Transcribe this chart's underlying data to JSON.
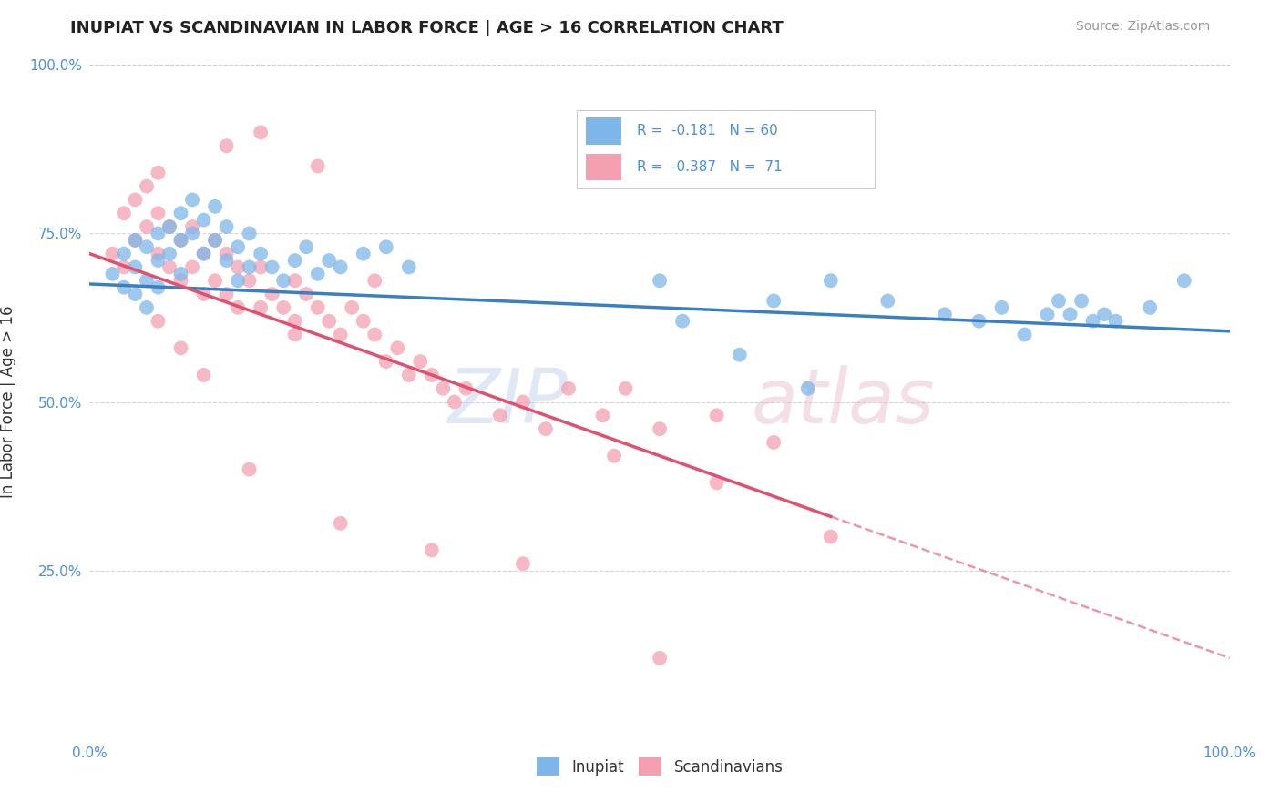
{
  "title": "INUPIAT VS SCANDINAVIAN IN LABOR FORCE | AGE > 16 CORRELATION CHART",
  "source_text": "Source: ZipAtlas.com",
  "ylabel": "In Labor Force | Age > 16",
  "xlim": [
    0.0,
    1.0
  ],
  "ylim": [
    0.0,
    1.0
  ],
  "background_color": "#ffffff",
  "grid_color": "#cccccc",
  "inupiat_color": "#7eb6e8",
  "scandinavian_color": "#f4a0b0",
  "inupiat_line_color": "#3a7fc1",
  "scandinavian_line_color": "#e05070",
  "inupiat_x": [
    0.02,
    0.03,
    0.03,
    0.04,
    0.04,
    0.04,
    0.05,
    0.05,
    0.05,
    0.06,
    0.06,
    0.06,
    0.07,
    0.07,
    0.08,
    0.08,
    0.08,
    0.09,
    0.09,
    0.1,
    0.1,
    0.11,
    0.11,
    0.12,
    0.12,
    0.13,
    0.13,
    0.14,
    0.14,
    0.15,
    0.16,
    0.17,
    0.18,
    0.19,
    0.2,
    0.21,
    0.22,
    0.24,
    0.26,
    0.28,
    0.5,
    0.52,
    0.57,
    0.6,
    0.63,
    0.65,
    0.7,
    0.75,
    0.78,
    0.8,
    0.82,
    0.84,
    0.85,
    0.86,
    0.87,
    0.88,
    0.89,
    0.9,
    0.93,
    0.96
  ],
  "inupiat_y": [
    0.69,
    0.72,
    0.67,
    0.74,
    0.7,
    0.66,
    0.73,
    0.68,
    0.64,
    0.75,
    0.71,
    0.67,
    0.76,
    0.72,
    0.78,
    0.74,
    0.69,
    0.8,
    0.75,
    0.77,
    0.72,
    0.79,
    0.74,
    0.76,
    0.71,
    0.73,
    0.68,
    0.75,
    0.7,
    0.72,
    0.7,
    0.68,
    0.71,
    0.73,
    0.69,
    0.71,
    0.7,
    0.72,
    0.73,
    0.7,
    0.68,
    0.62,
    0.57,
    0.65,
    0.52,
    0.68,
    0.65,
    0.63,
    0.62,
    0.64,
    0.6,
    0.63,
    0.65,
    0.63,
    0.65,
    0.62,
    0.63,
    0.62,
    0.64,
    0.68
  ],
  "scandinavian_x": [
    0.02,
    0.03,
    0.03,
    0.04,
    0.04,
    0.05,
    0.05,
    0.06,
    0.06,
    0.06,
    0.07,
    0.07,
    0.08,
    0.08,
    0.09,
    0.09,
    0.1,
    0.1,
    0.11,
    0.11,
    0.12,
    0.12,
    0.13,
    0.13,
    0.14,
    0.15,
    0.15,
    0.16,
    0.17,
    0.18,
    0.18,
    0.19,
    0.2,
    0.21,
    0.22,
    0.23,
    0.24,
    0.25,
    0.26,
    0.27,
    0.28,
    0.29,
    0.3,
    0.31,
    0.32,
    0.33,
    0.36,
    0.38,
    0.4,
    0.42,
    0.45,
    0.47,
    0.5,
    0.55,
    0.6,
    0.15,
    0.2,
    0.12,
    0.25,
    0.18,
    0.08,
    0.1,
    0.06,
    0.14,
    0.22,
    0.3,
    0.38,
    0.46,
    0.55,
    0.65,
    0.5
  ],
  "scandinavian_y": [
    0.72,
    0.78,
    0.7,
    0.8,
    0.74,
    0.82,
    0.76,
    0.84,
    0.78,
    0.72,
    0.76,
    0.7,
    0.74,
    0.68,
    0.76,
    0.7,
    0.72,
    0.66,
    0.74,
    0.68,
    0.72,
    0.66,
    0.7,
    0.64,
    0.68,
    0.7,
    0.64,
    0.66,
    0.64,
    0.68,
    0.62,
    0.66,
    0.64,
    0.62,
    0.6,
    0.64,
    0.62,
    0.6,
    0.56,
    0.58,
    0.54,
    0.56,
    0.54,
    0.52,
    0.5,
    0.52,
    0.48,
    0.5,
    0.46,
    0.52,
    0.48,
    0.52,
    0.46,
    0.48,
    0.44,
    0.9,
    0.85,
    0.88,
    0.68,
    0.6,
    0.58,
    0.54,
    0.62,
    0.4,
    0.32,
    0.28,
    0.26,
    0.42,
    0.38,
    0.3,
    0.12
  ]
}
